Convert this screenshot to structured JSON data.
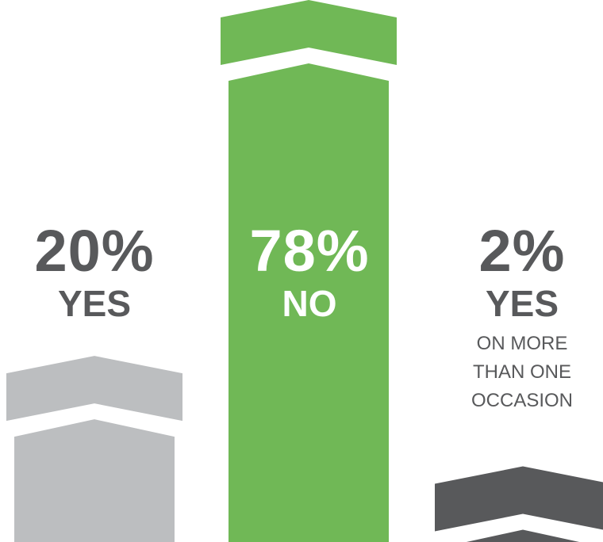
{
  "chart_data": {
    "type": "bar",
    "categories": [
      "YES",
      "NO",
      "YES ON MORE THAN ONE OCCASION"
    ],
    "values": [
      20,
      78,
      2
    ],
    "ylim": [
      0,
      78
    ],
    "grid": false,
    "bars": [
      {
        "percent_label": "20%",
        "answer_label": "YES",
        "note_label": "",
        "color": "#bcbec0",
        "text_color": "#58595b"
      },
      {
        "percent_label": "78%",
        "answer_label": "NO",
        "note_label": "",
        "color": "#70b856",
        "text_color": "#ffffff"
      },
      {
        "percent_label": "2%",
        "answer_label": "YES",
        "note_label": "ON MORE THAN ONE OCCASION",
        "color": "#58595b",
        "text_color": "#58595b"
      }
    ]
  }
}
